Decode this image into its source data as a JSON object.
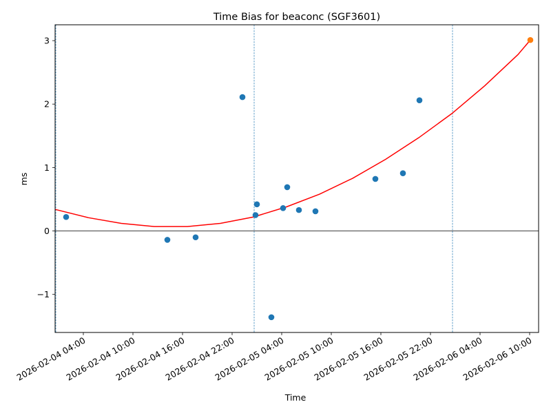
{
  "chart_data": {
    "type": "scatter",
    "title": "Time Bias for beaconc (SGF3601)",
    "xlabel": "Time",
    "ylabel": "ms",
    "x_range": [
      "2026-02-04T00:35",
      "2026-02-06T11:05"
    ],
    "y_range": [
      -1.6,
      3.25
    ],
    "x_ticks": [
      {
        "t": "2026-02-04T04:00",
        "label": "2026-02-04 04:00"
      },
      {
        "t": "2026-02-04T10:00",
        "label": "2026-02-04 10:00"
      },
      {
        "t": "2026-02-04T16:00",
        "label": "2026-02-04 16:00"
      },
      {
        "t": "2026-02-04T22:00",
        "label": "2026-02-04 22:00"
      },
      {
        "t": "2026-02-05T04:00",
        "label": "2026-02-05 04:00"
      },
      {
        "t": "2026-02-05T10:00",
        "label": "2026-02-05 10:00"
      },
      {
        "t": "2026-02-05T16:00",
        "label": "2026-02-05 16:00"
      },
      {
        "t": "2026-02-05T22:00",
        "label": "2026-02-05 22:00"
      },
      {
        "t": "2026-02-06T04:00",
        "label": "2026-02-06 04:00"
      },
      {
        "t": "2026-02-06T10:00",
        "label": "2026-02-06 10:00"
      }
    ],
    "y_ticks": [
      {
        "v": -1,
        "label": "−1"
      },
      {
        "v": 0,
        "label": "0"
      },
      {
        "v": 1,
        "label": "1"
      },
      {
        "v": 2,
        "label": "2"
      },
      {
        "v": 3,
        "label": "3"
      }
    ],
    "horizontal_line": {
      "y": 0,
      "color": "#000000"
    },
    "vertical_lines": {
      "color": "#1f77b4",
      "style": "dashed",
      "x": [
        "2026-02-04T00:40",
        "2026-02-05T00:40",
        "2026-02-06T00:40"
      ]
    },
    "series": [
      {
        "kind": "points",
        "color": "#1f77b4",
        "points": [
          {
            "x": "2026-02-04T01:55",
            "y": 0.22
          },
          {
            "x": "2026-02-04T14:10",
            "y": -0.14
          },
          {
            "x": "2026-02-04T17:35",
            "y": -0.1
          },
          {
            "x": "2026-02-04T23:15",
            "y": 2.11
          },
          {
            "x": "2026-02-05T00:50",
            "y": 0.25
          },
          {
            "x": "2026-02-05T01:00",
            "y": 0.42
          },
          {
            "x": "2026-02-05T02:45",
            "y": -1.36
          },
          {
            "x": "2026-02-05T04:10",
            "y": 0.36
          },
          {
            "x": "2026-02-05T04:40",
            "y": 0.69
          },
          {
            "x": "2026-02-05T06:05",
            "y": 0.33
          },
          {
            "x": "2026-02-05T08:05",
            "y": 0.31
          },
          {
            "x": "2026-02-05T15:20",
            "y": 0.82
          },
          {
            "x": "2026-02-05T18:40",
            "y": 0.91
          },
          {
            "x": "2026-02-05T20:40",
            "y": 2.06
          }
        ]
      },
      {
        "kind": "points",
        "color": "#ff7f0e",
        "points": [
          {
            "x": "2026-02-06T10:05",
            "y": 3.01
          }
        ]
      },
      {
        "kind": "curve",
        "color": "#ff0000",
        "points": [
          {
            "x": "2026-02-04T00:35",
            "y": 0.34
          },
          {
            "x": "2026-02-04T04:35",
            "y": 0.21
          },
          {
            "x": "2026-02-04T08:35",
            "y": 0.12
          },
          {
            "x": "2026-02-04T12:35",
            "y": 0.07
          },
          {
            "x": "2026-02-04T16:35",
            "y": 0.07
          },
          {
            "x": "2026-02-04T20:35",
            "y": 0.12
          },
          {
            "x": "2026-02-05T00:35",
            "y": 0.22
          },
          {
            "x": "2026-02-05T04:35",
            "y": 0.38
          },
          {
            "x": "2026-02-05T08:35",
            "y": 0.58
          },
          {
            "x": "2026-02-05T12:35",
            "y": 0.83
          },
          {
            "x": "2026-02-05T16:35",
            "y": 1.13
          },
          {
            "x": "2026-02-05T20:35",
            "y": 1.47
          },
          {
            "x": "2026-02-06T00:35",
            "y": 1.85
          },
          {
            "x": "2026-02-06T04:35",
            "y": 2.29
          },
          {
            "x": "2026-02-06T08:35",
            "y": 2.78
          },
          {
            "x": "2026-02-06T10:05",
            "y": 3.01
          }
        ]
      }
    ]
  }
}
